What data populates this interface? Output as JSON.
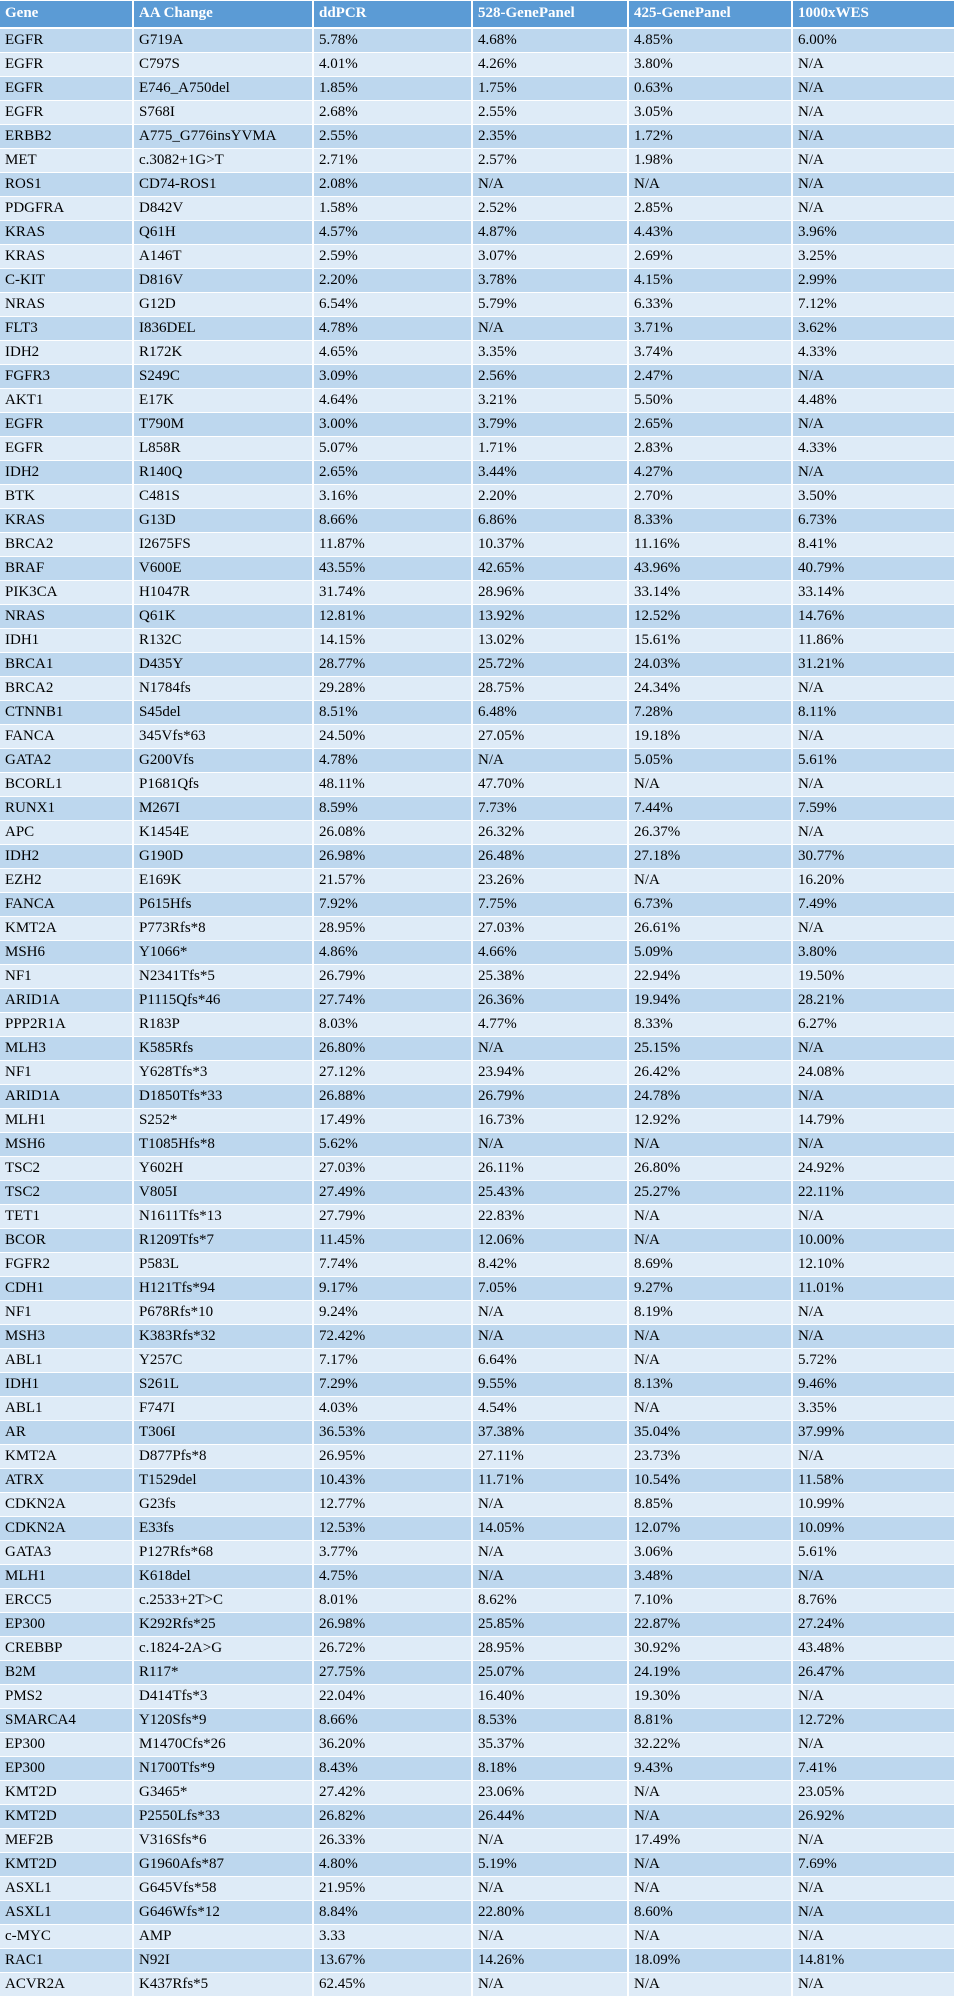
{
  "colors": {
    "header_bg": "#5b9bd5",
    "header_text": "#ffffff",
    "row_odd_bg": "#bdd7ee",
    "row_even_bg": "#deebf7",
    "body_text": "#000000",
    "grid": "#ffffff"
  },
  "chart_data": {
    "type": "table",
    "columns": [
      "Gene",
      "AA Change",
      "ddPCR",
      "528-GenePanel",
      "425-GenePanel",
      "1000xWES"
    ],
    "rows": [
      [
        "EGFR",
        "G719A",
        "5.78%",
        "4.68%",
        "4.85%",
        "6.00%"
      ],
      [
        "EGFR",
        "C797S",
        "4.01%",
        "4.26%",
        "3.80%",
        "N/A"
      ],
      [
        "EGFR",
        "E746_A750del",
        "1.85%",
        "1.75%",
        "0.63%",
        "N/A"
      ],
      [
        "EGFR",
        "S768I",
        "2.68%",
        "2.55%",
        "3.05%",
        "N/A"
      ],
      [
        "ERBB2",
        "A775_G776insYVMA",
        "2.55%",
        "2.35%",
        "1.72%",
        "N/A"
      ],
      [
        "MET",
        "c.3082+1G>T",
        "2.71%",
        "2.57%",
        "1.98%",
        "N/A"
      ],
      [
        "ROS1",
        "CD74-ROS1",
        "2.08%",
        "N/A",
        "N/A",
        "N/A"
      ],
      [
        "PDGFRA",
        "D842V",
        "1.58%",
        "2.52%",
        "2.85%",
        "N/A"
      ],
      [
        "KRAS",
        "Q61H",
        "4.57%",
        "4.87%",
        "4.43%",
        "3.96%"
      ],
      [
        "KRAS",
        "A146T",
        "2.59%",
        "3.07%",
        "2.69%",
        "3.25%"
      ],
      [
        "C-KIT",
        "D816V",
        "2.20%",
        "3.78%",
        "4.15%",
        "2.99%"
      ],
      [
        "NRAS",
        "G12D",
        "6.54%",
        "5.79%",
        "6.33%",
        "7.12%"
      ],
      [
        "FLT3",
        "I836DEL",
        "4.78%",
        "N/A",
        "3.71%",
        "3.62%"
      ],
      [
        "IDH2",
        "R172K",
        "4.65%",
        "3.35%",
        "3.74%",
        "4.33%"
      ],
      [
        "FGFR3",
        "S249C",
        "3.09%",
        "2.56%",
        "2.47%",
        "N/A"
      ],
      [
        "AKT1",
        "E17K",
        "4.64%",
        "3.21%",
        "5.50%",
        "4.48%"
      ],
      [
        "EGFR",
        "T790M",
        "3.00%",
        "3.79%",
        "2.65%",
        "N/A"
      ],
      [
        "EGFR",
        "L858R",
        "5.07%",
        "1.71%",
        "2.83%",
        "4.33%"
      ],
      [
        "IDH2",
        "R140Q",
        "2.65%",
        "3.44%",
        "4.27%",
        "N/A"
      ],
      [
        "BTK",
        "C481S",
        "3.16%",
        "2.20%",
        "2.70%",
        "3.50%"
      ],
      [
        "KRAS",
        "G13D",
        "8.66%",
        "6.86%",
        "8.33%",
        "6.73%"
      ],
      [
        "BRCA2",
        "I2675FS",
        "11.87%",
        "10.37%",
        "11.16%",
        "8.41%"
      ],
      [
        "BRAF",
        "V600E",
        "43.55%",
        "42.65%",
        "43.96%",
        "40.79%"
      ],
      [
        "PIK3CA",
        "H1047R",
        "31.74%",
        "28.96%",
        "33.14%",
        "33.14%"
      ],
      [
        "NRAS",
        "Q61K",
        "12.81%",
        "13.92%",
        "12.52%",
        "14.76%"
      ],
      [
        "IDH1",
        "R132C",
        "14.15%",
        "13.02%",
        "15.61%",
        "11.86%"
      ],
      [
        "BRCA1",
        "D435Y",
        "28.77%",
        "25.72%",
        "24.03%",
        "31.21%"
      ],
      [
        "BRCA2",
        "N1784fs",
        "29.28%",
        "28.75%",
        "24.34%",
        "N/A"
      ],
      [
        "CTNNB1",
        "S45del",
        "8.51%",
        "6.48%",
        "7.28%",
        "8.11%"
      ],
      [
        "FANCA",
        "345Vfs*63",
        "24.50%",
        "27.05%",
        "19.18%",
        "N/A"
      ],
      [
        "GATA2",
        "G200Vfs",
        "4.78%",
        "N/A",
        "5.05%",
        "5.61%"
      ],
      [
        "BCORL1",
        "P1681Qfs",
        "48.11%",
        "47.70%",
        "N/A",
        "N/A"
      ],
      [
        "RUNX1",
        "M267I",
        "8.59%",
        "7.73%",
        "7.44%",
        "7.59%"
      ],
      [
        "APC",
        "K1454E",
        "26.08%",
        "26.32%",
        "26.37%",
        "N/A"
      ],
      [
        "IDH2",
        "G190D",
        "26.98%",
        "26.48%",
        "27.18%",
        "30.77%"
      ],
      [
        "EZH2",
        "E169K",
        "21.57%",
        "23.26%",
        "N/A",
        "16.20%"
      ],
      [
        "FANCA",
        "P615Hfs",
        "7.92%",
        "7.75%",
        "6.73%",
        "7.49%"
      ],
      [
        "KMT2A",
        "P773Rfs*8",
        "28.95%",
        "27.03%",
        "26.61%",
        "N/A"
      ],
      [
        "MSH6",
        "Y1066*",
        "4.86%",
        "4.66%",
        "5.09%",
        "3.80%"
      ],
      [
        "NF1",
        "N2341Tfs*5",
        "26.79%",
        "25.38%",
        "22.94%",
        "19.50%"
      ],
      [
        "ARID1A",
        "P1115Qfs*46",
        "27.74%",
        "26.36%",
        "19.94%",
        "28.21%"
      ],
      [
        "PPP2R1A",
        "R183P",
        "8.03%",
        "4.77%",
        "8.33%",
        "6.27%"
      ],
      [
        "MLH3",
        "K585Rfs",
        "26.80%",
        "N/A",
        "25.15%",
        "N/A"
      ],
      [
        "NF1",
        "Y628Tfs*3",
        "27.12%",
        "23.94%",
        "26.42%",
        "24.08%"
      ],
      [
        "ARID1A",
        "D1850Tfs*33",
        "26.88%",
        "26.79%",
        "24.78%",
        "N/A"
      ],
      [
        "MLH1",
        "S252*",
        "17.49%",
        "16.73%",
        "12.92%",
        "14.79%"
      ],
      [
        "MSH6",
        "T1085Hfs*8",
        "5.62%",
        "N/A",
        "N/A",
        "N/A"
      ],
      [
        "TSC2",
        "Y602H",
        "27.03%",
        "26.11%",
        "26.80%",
        "24.92%"
      ],
      [
        "TSC2",
        "V805I",
        "27.49%",
        "25.43%",
        "25.27%",
        "22.11%"
      ],
      [
        "TET1",
        "N1611Tfs*13",
        "27.79%",
        "22.83%",
        "N/A",
        "N/A"
      ],
      [
        "BCOR",
        "R1209Tfs*7",
        "11.45%",
        "12.06%",
        "N/A",
        "10.00%"
      ],
      [
        "FGFR2",
        "P583L",
        "7.74%",
        "8.42%",
        "8.69%",
        "12.10%"
      ],
      [
        "CDH1",
        "H121Tfs*94",
        "9.17%",
        "7.05%",
        "9.27%",
        "11.01%"
      ],
      [
        "NF1",
        "P678Rfs*10",
        "9.24%",
        "N/A",
        "8.19%",
        "N/A"
      ],
      [
        "MSH3",
        "K383Rfs*32",
        "72.42%",
        "N/A",
        "N/A",
        "N/A"
      ],
      [
        "ABL1",
        "Y257C",
        "7.17%",
        "6.64%",
        "N/A",
        "5.72%"
      ],
      [
        "IDH1",
        "S261L",
        "7.29%",
        "9.55%",
        "8.13%",
        "9.46%"
      ],
      [
        "ABL1",
        "F747I",
        "4.03%",
        "4.54%",
        "N/A",
        "3.35%"
      ],
      [
        "AR",
        "T306I",
        "36.53%",
        "37.38%",
        "35.04%",
        "37.99%"
      ],
      [
        "KMT2A",
        "D877Pfs*8",
        "26.95%",
        "27.11%",
        "23.73%",
        "N/A"
      ],
      [
        "ATRX",
        "T1529del",
        "10.43%",
        "11.71%",
        "10.54%",
        "11.58%"
      ],
      [
        "CDKN2A",
        "G23fs",
        "12.77%",
        "N/A",
        "8.85%",
        "10.99%"
      ],
      [
        "CDKN2A",
        "E33fs",
        "12.53%",
        "14.05%",
        "12.07%",
        "10.09%"
      ],
      [
        "GATA3",
        "P127Rfs*68",
        "3.77%",
        "N/A",
        "3.06%",
        "5.61%"
      ],
      [
        "MLH1",
        "K618del",
        "4.75%",
        "N/A",
        "3.48%",
        "N/A"
      ],
      [
        "ERCC5",
        "c.2533+2T>C",
        "8.01%",
        "8.62%",
        "7.10%",
        "8.76%"
      ],
      [
        "EP300",
        "K292Rfs*25",
        "26.98%",
        "25.85%",
        "22.87%",
        "27.24%"
      ],
      [
        "CREBBP",
        "c.1824-2A>G",
        "26.72%",
        "28.95%",
        "30.92%",
        "43.48%"
      ],
      [
        "B2M",
        "R117*",
        "27.75%",
        "25.07%",
        "24.19%",
        "26.47%"
      ],
      [
        "PMS2",
        "D414Tfs*3",
        "22.04%",
        "16.40%",
        "19.30%",
        "N/A"
      ],
      [
        "SMARCA4",
        "Y120Sfs*9",
        "8.66%",
        "8.53%",
        "8.81%",
        "12.72%"
      ],
      [
        "EP300",
        "M1470Cfs*26",
        "36.20%",
        "35.37%",
        "32.22%",
        "N/A"
      ],
      [
        "EP300",
        "N1700Tfs*9",
        "8.43%",
        "8.18%",
        "9.43%",
        "7.41%"
      ],
      [
        "KMT2D",
        "G3465*",
        "27.42%",
        "23.06%",
        "N/A",
        "23.05%"
      ],
      [
        "KMT2D",
        "P2550Lfs*33",
        "26.82%",
        "26.44%",
        "N/A",
        "26.92%"
      ],
      [
        "MEF2B",
        "V316Sfs*6",
        "26.33%",
        "N/A",
        "17.49%",
        "N/A"
      ],
      [
        "KMT2D",
        "G1960Afs*87",
        "4.80%",
        "5.19%",
        "N/A",
        "7.69%"
      ],
      [
        "ASXL1",
        "G645Vfs*58",
        "21.95%",
        "N/A",
        "N/A",
        "N/A"
      ],
      [
        "ASXL1",
        "G646Wfs*12",
        "8.84%",
        "22.80%",
        "8.60%",
        "N/A"
      ],
      [
        "c-MYC",
        "AMP",
        "3.33",
        "N/A",
        "N/A",
        "N/A"
      ],
      [
        "RAC1",
        "N92I",
        "13.67%",
        "14.26%",
        "18.09%",
        "14.81%"
      ],
      [
        "ACVR2A",
        "K437Rfs*5",
        "62.45%",
        "N/A",
        "N/A",
        "N/A"
      ]
    ]
  }
}
